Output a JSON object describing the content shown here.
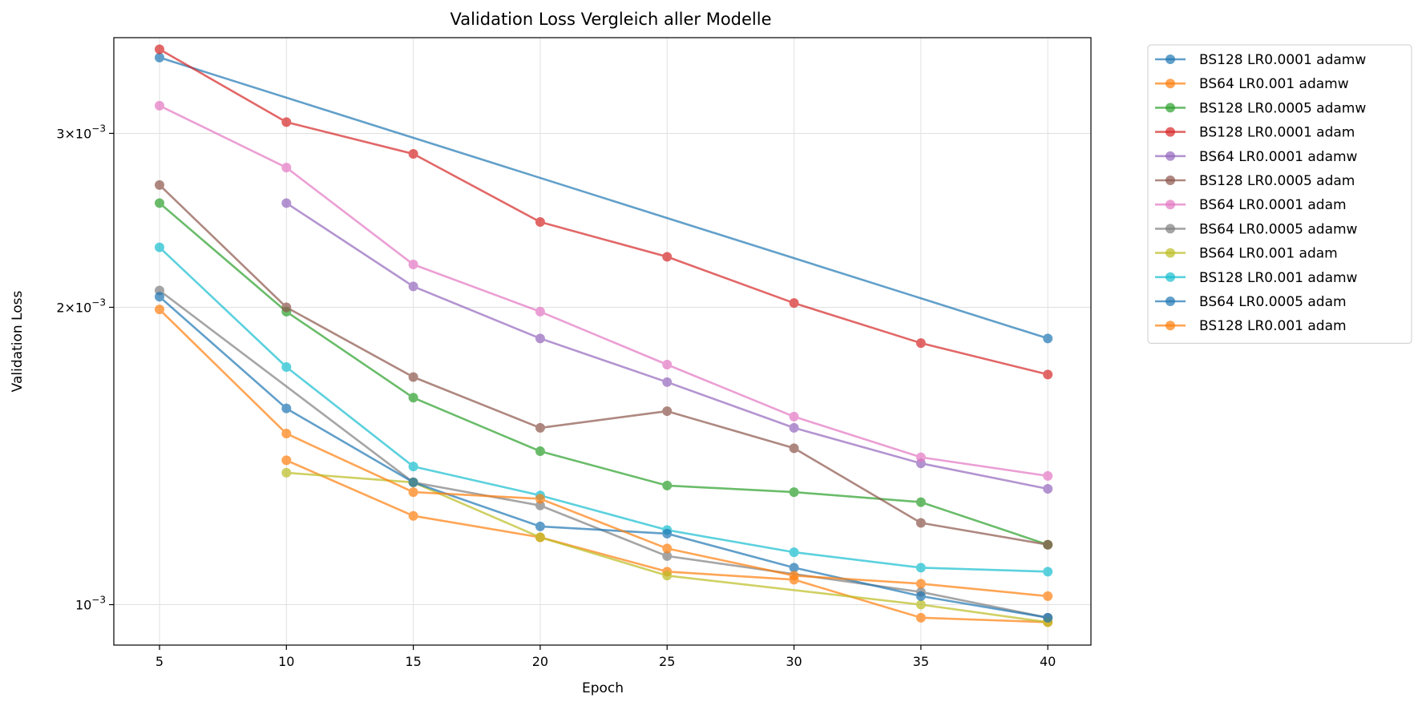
{
  "chart_data": {
    "type": "line",
    "title": "Validation Loss Vergleich aller Modelle",
    "xlabel": "Epoch",
    "ylabel": "Validation Loss",
    "yscale": "log",
    "xlim": [
      3.2,
      41.7
    ],
    "ylim": [
      0.00091,
      0.00375
    ],
    "xticks": [
      5,
      10,
      15,
      20,
      25,
      30,
      35,
      40
    ],
    "yticks": [
      {
        "value": 0.001,
        "label": "10",
        "exp": "−3"
      },
      {
        "value": 0.002,
        "label": "2×10",
        "exp": "−3"
      },
      {
        "value": 0.003,
        "label": "3×10",
        "exp": "−3"
      }
    ],
    "grid": true,
    "legend": "outside-right",
    "series": [
      {
        "name": "BS128 LR0.0001 adamw",
        "color": "#1f77b4",
        "x": [
          5,
          40
        ],
        "y": [
          0.00358,
          0.00186
        ]
      },
      {
        "name": "BS64 LR0.001 adamw",
        "color": "#ff7f0e",
        "x": [
          10,
          15,
          20,
          25,
          30,
          35,
          40
        ],
        "y": [
          0.0014,
          0.00123,
          0.00117,
          0.00108,
          0.00106,
          0.00097,
          0.00096
        ]
      },
      {
        "name": "BS128 LR0.0005 adamw",
        "color": "#2ca02c",
        "x": [
          5,
          10,
          15,
          20,
          25,
          30,
          35,
          40
        ],
        "y": [
          0.00255,
          0.00198,
          0.00162,
          0.00143,
          0.00132,
          0.0013,
          0.00127,
          0.00115
        ]
      },
      {
        "name": "BS128 LR0.0001 adam",
        "color": "#d62728",
        "x": [
          5,
          10,
          15,
          20,
          25,
          30,
          35,
          40
        ],
        "y": [
          0.00365,
          0.00308,
          0.00286,
          0.00244,
          0.00225,
          0.00202,
          0.00184,
          0.00171
        ]
      },
      {
        "name": "BS64 LR0.0001 adamw",
        "color": "#9467bd",
        "x": [
          10,
          15,
          20,
          25,
          30,
          35,
          40
        ],
        "y": [
          0.00255,
          0.0021,
          0.00186,
          0.00168,
          0.00151,
          0.00139,
          0.00131
        ]
      },
      {
        "name": "BS128 LR0.0005 adam",
        "color": "#8c564b",
        "x": [
          5,
          10,
          15,
          20,
          25,
          30,
          35,
          40
        ],
        "y": [
          0.00266,
          0.002,
          0.0017,
          0.00151,
          0.00157,
          0.00144,
          0.00121,
          0.00115
        ]
      },
      {
        "name": "BS64 LR0.0001 adam",
        "color": "#e377c2",
        "x": [
          5,
          10,
          15,
          20,
          25,
          30,
          35,
          40
        ],
        "y": [
          0.0032,
          0.00277,
          0.00221,
          0.00198,
          0.00175,
          0.00155,
          0.00141,
          0.00135
        ]
      },
      {
        "name": "BS64 LR0.0005 adamw",
        "color": "#7f7f7f",
        "x": [
          5,
          15,
          20,
          25,
          35,
          40
        ],
        "y": [
          0.00208,
          0.00133,
          0.00126,
          0.00112,
          0.00103,
          0.00097
        ]
      },
      {
        "name": "BS64 LR0.001 adam",
        "color": "#bcbd22",
        "x": [
          10,
          15,
          20,
          25,
          35,
          40
        ],
        "y": [
          0.00136,
          0.00133,
          0.00117,
          0.00107,
          0.001,
          0.00096
        ]
      },
      {
        "name": "BS128 LR0.001 adamw",
        "color": "#17becf",
        "x": [
          5,
          10,
          15,
          20,
          25,
          30,
          35,
          40
        ],
        "y": [
          0.0023,
          0.00174,
          0.00138,
          0.00129,
          0.00119,
          0.00113,
          0.00109,
          0.00108
        ]
      },
      {
        "name": "BS64 LR0.0005 adam",
        "color": "#1f77b4",
        "x": [
          5,
          10,
          15,
          20,
          25,
          30,
          35,
          40
        ],
        "y": [
          0.00205,
          0.00158,
          0.00133,
          0.0012,
          0.00118,
          0.00109,
          0.00102,
          0.00097
        ]
      },
      {
        "name": "BS128 LR0.001 adam",
        "color": "#ff7f0e",
        "x": [
          5,
          10,
          15,
          20,
          25,
          30,
          35,
          40
        ],
        "y": [
          0.00199,
          0.00149,
          0.0013,
          0.00128,
          0.00114,
          0.00107,
          0.00105,
          0.00102
        ]
      }
    ]
  }
}
